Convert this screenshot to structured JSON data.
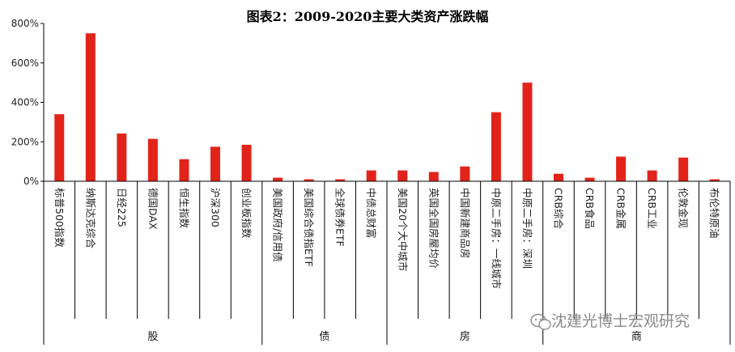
{
  "chart_data": {
    "type": "bar",
    "title": "图表2：2009-2020主要大类资产涨跌幅",
    "categories": [
      "标普500指数",
      "纳斯达克综合",
      "日经225",
      "德国DAX",
      "恒生指数",
      "沪深300",
      "创业板指数",
      "美国政府/信用债",
      "美国综合债指ETF",
      "全球债券ETF",
      "中债总财富",
      "美国20个大中城市",
      "英国全国房屋均价",
      "中国新建商品房",
      "中原二手房：一线城市",
      "中原二手房：深圳",
      "CRB综合",
      "CRB食品",
      "CRB金属",
      "CRB工业",
      "伦敦金现",
      "布伦特原油"
    ],
    "values": [
      340,
      750,
      242,
      215,
      112,
      175,
      185,
      18,
      10,
      10,
      55,
      55,
      47,
      75,
      350,
      500,
      38,
      18,
      125,
      55,
      120,
      10
    ],
    "unit": "%",
    "ylim": [
      0,
      800
    ],
    "yticks": [
      "0%",
      "200%",
      "400%",
      "600%",
      "800%"
    ],
    "bar_color": "#e2231a",
    "groups": [
      {
        "label": "股",
        "count": 7
      },
      {
        "label": "债",
        "count": 4
      },
      {
        "label": "房",
        "count": 5
      },
      {
        "label": "商",
        "count": 6
      }
    ],
    "grid": false,
    "legend": "none"
  },
  "watermark": {
    "icon": "wechat-icon",
    "text": "沈建光博士宏观研究"
  }
}
